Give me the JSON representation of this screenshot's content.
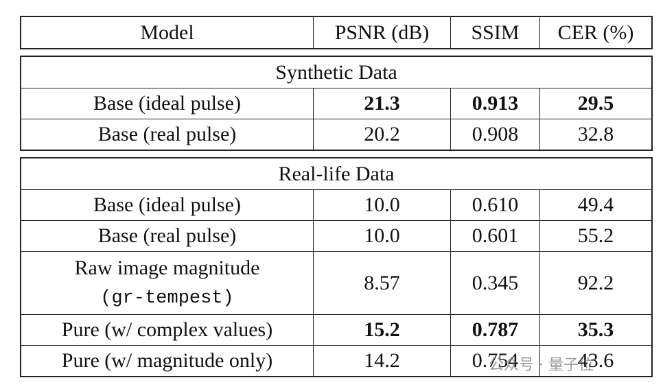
{
  "header": [
    "Model",
    "PSNR (dB)",
    "SSIM",
    "CER (%)"
  ],
  "sections": [
    {
      "title": "Synthetic Data",
      "rows": [
        {
          "cells": [
            "Base (ideal pulse)",
            "21.3",
            "0.913",
            "29.5"
          ],
          "bold": true
        },
        {
          "cells": [
            "Base (real pulse)",
            "20.2",
            "0.908",
            "32.8"
          ],
          "bold": false
        }
      ]
    },
    {
      "title": "Real-life Data",
      "rows": [
        {
          "cells": [
            "Base (ideal pulse)",
            "10.0",
            "0.610",
            "49.4"
          ],
          "bold": false
        },
        {
          "cells": [
            "Base (real pulse)",
            "10.0",
            "0.601",
            "55.2"
          ],
          "bold": false
        },
        {
          "cells": [
            "Raw image magnitude",
            "8.57",
            "0.345",
            "92.2"
          ],
          "model_line2": "(gr-tempest)",
          "bold": false
        },
        {
          "cells": [
            "Pure (w/ complex values)",
            "15.2",
            "0.787",
            "35.3"
          ],
          "bold": true
        },
        {
          "cells": [
            "Pure (w/ magnitude only)",
            "14.2",
            "0.754",
            "43.6"
          ],
          "bold": false
        }
      ]
    }
  ],
  "watermark": "公众号 · 量子位"
}
